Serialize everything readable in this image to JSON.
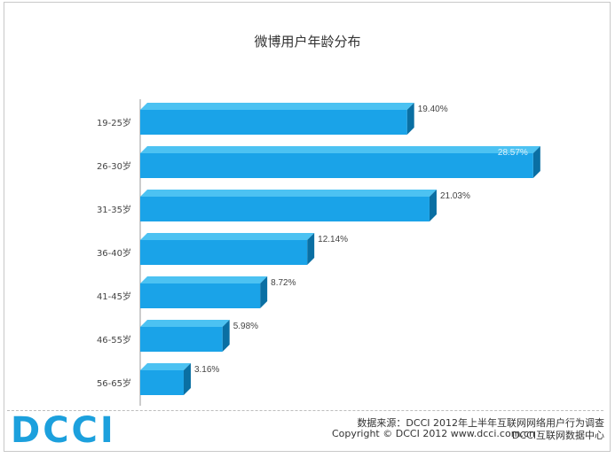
{
  "colors": {
    "bar_front": "#1aa3e8",
    "bar_top": "#4cc2f2",
    "bar_side": "#0a6fa3",
    "axis": "#999999",
    "logo": "#1ca0dd"
  },
  "chart_data": {
    "type": "bar",
    "orientation": "horizontal",
    "title": "微博用户年龄分布",
    "categories": [
      "19-25岁",
      "26-30岁",
      "31-35岁",
      "36-40岁",
      "41-45岁",
      "46-55岁",
      "56-65岁"
    ],
    "values": [
      19.4,
      28.57,
      21.03,
      12.14,
      8.72,
      5.98,
      3.16
    ],
    "value_labels": [
      "19.40%",
      "28.57%",
      "21.03%",
      "12.14%",
      "8.72%",
      "5.98%",
      "3.16%"
    ],
    "xlim": [
      0,
      30
    ],
    "grid": false,
    "legend": "none"
  },
  "footer": {
    "logo_text": "DCCI",
    "source": "数据来源：DCCI 2012年上半年互联网网络用户行为调查",
    "copyright": "Copyright © DCCI 2012  www.dcci.com.cn",
    "center": "DCCI互联网数据中心"
  }
}
